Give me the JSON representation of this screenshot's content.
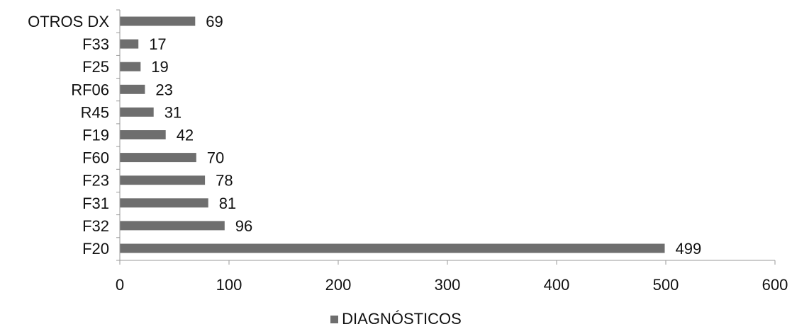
{
  "chart_data": {
    "type": "bar",
    "orientation": "horizontal",
    "categories": [
      "F20",
      "F32",
      "F31",
      "F23",
      "F60",
      "F19",
      "R45",
      "RF06",
      "F25",
      "F33",
      "OTROS DX"
    ],
    "series": [
      {
        "name": "DIAGNÓSTICOS",
        "values": [
          499,
          96,
          81,
          78,
          70,
          42,
          31,
          23,
          19,
          17,
          69
        ]
      }
    ],
    "xlim": [
      0,
      600
    ],
    "xticks": [
      0,
      100,
      200,
      300,
      400,
      500,
      600
    ],
    "grid": false,
    "legend": "bottom-center",
    "colors": {
      "bar": "#6e6e6e",
      "axis": "#9a9a9a",
      "text": "#111111"
    }
  }
}
